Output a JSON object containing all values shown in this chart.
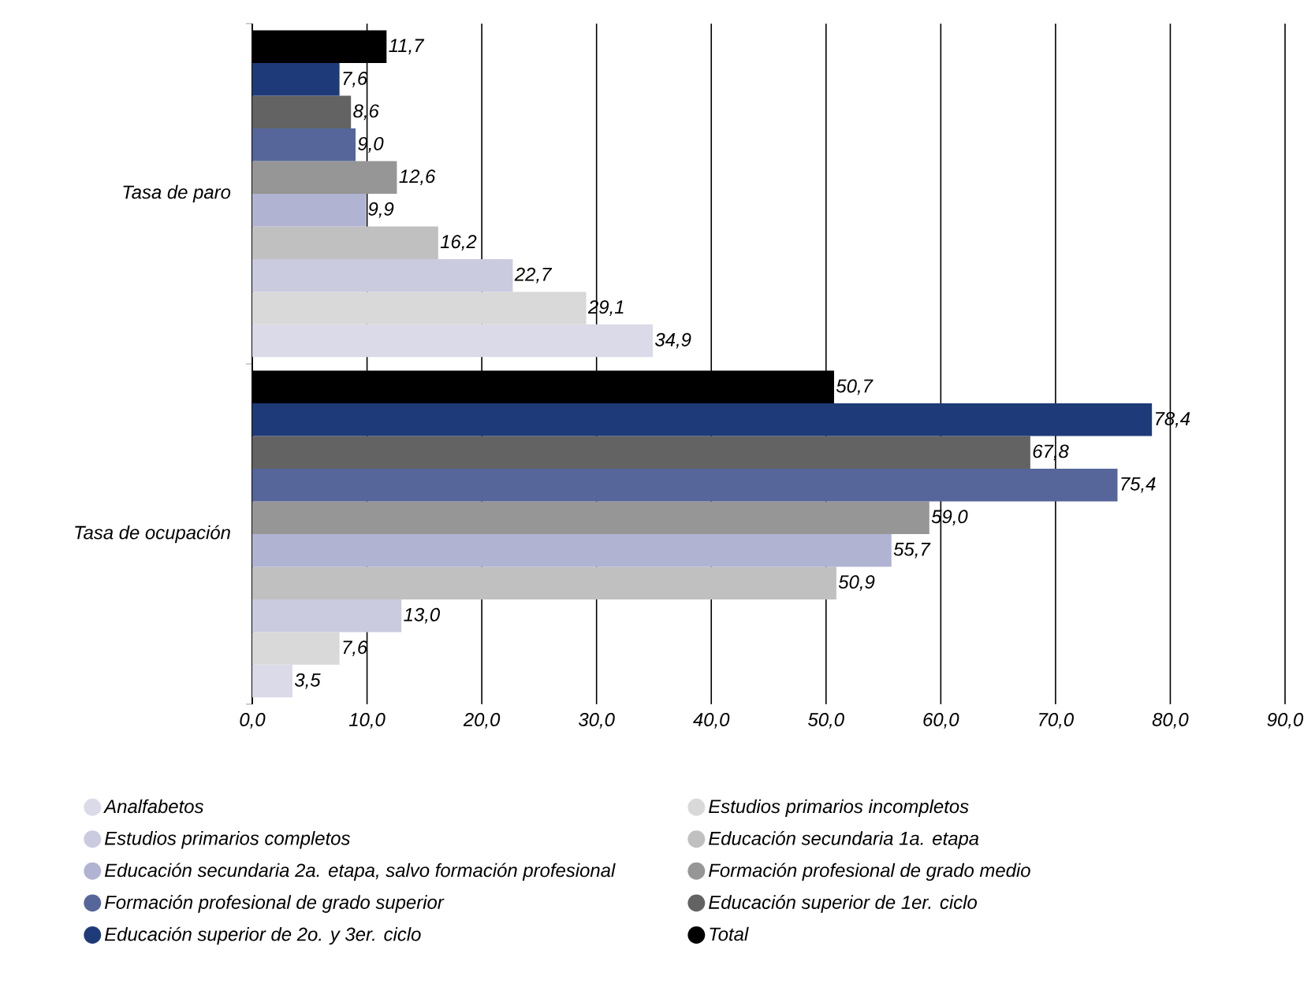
{
  "chart_data": {
    "type": "bar",
    "orientation": "horizontal",
    "categories": [
      "Tasa de paro",
      "Tasa de ocupación"
    ],
    "series": [
      {
        "name": "Analfabetos",
        "color": "#dadae8",
        "values": [
          34.9,
          3.5
        ],
        "value_labels": [
          "34,9",
          "3,5"
        ]
      },
      {
        "name": "Estudios primarios incompletos",
        "color": "#d9d9d9",
        "values": [
          29.1,
          7.6
        ],
        "value_labels": [
          "29,1",
          "7,6"
        ]
      },
      {
        "name": "Estudios primarios completos",
        "color": "#cbcbdf",
        "values": [
          22.7,
          13.0
        ],
        "value_labels": [
          "22,7",
          "13,0"
        ]
      },
      {
        "name": "Educación secundaria 1a. etapa",
        "color": "#c0c0c0",
        "values": [
          16.2,
          50.9
        ],
        "value_labels": [
          "16,2",
          "50,9"
        ]
      },
      {
        "name": "Educación secundaria 2a. etapa, salvo formación profesional",
        "color": "#b0b4d2",
        "values": [
          9.9,
          55.7
        ],
        "value_labels": [
          "9,9",
          "55,7"
        ]
      },
      {
        "name": "Formación profesional de grado medio",
        "color": "#969696",
        "values": [
          12.6,
          59.0
        ],
        "value_labels": [
          "12,6",
          "59,0"
        ]
      },
      {
        "name": "Formación profesional de grado superior",
        "color": "#56669a",
        "values": [
          9.0,
          75.4
        ],
        "value_labels": [
          "9,0",
          "75,4"
        ]
      },
      {
        "name": "Educación superior de 1er. ciclo",
        "color": "#636363",
        "values": [
          8.6,
          67.8
        ],
        "value_labels": [
          "8,6",
          "67,8"
        ]
      },
      {
        "name": "Educación superior de 2o. y 3er. ciclo",
        "color": "#1e3a78",
        "values": [
          7.6,
          78.4
        ],
        "value_labels": [
          "7,6",
          "78,4"
        ]
      },
      {
        "name": "Total",
        "color": "#000000",
        "values": [
          11.7,
          50.7
        ],
        "value_labels": [
          "11,7",
          "50,7"
        ]
      }
    ],
    "xlim": [
      0,
      90
    ],
    "xticks": [
      {
        "value": 0,
        "label": "0,0"
      },
      {
        "value": 10,
        "label": "10,0"
      },
      {
        "value": 20,
        "label": "20,0"
      },
      {
        "value": 30,
        "label": "30,0"
      },
      {
        "value": 40,
        "label": "40,0"
      },
      {
        "value": 50,
        "label": "50,0"
      },
      {
        "value": 60,
        "label": "60,0"
      },
      {
        "value": 70,
        "label": "70,0"
      },
      {
        "value": 80,
        "label": "80,0"
      },
      {
        "value": 90,
        "label": "90,0"
      }
    ],
    "grid": "x",
    "legend": "bottom"
  }
}
